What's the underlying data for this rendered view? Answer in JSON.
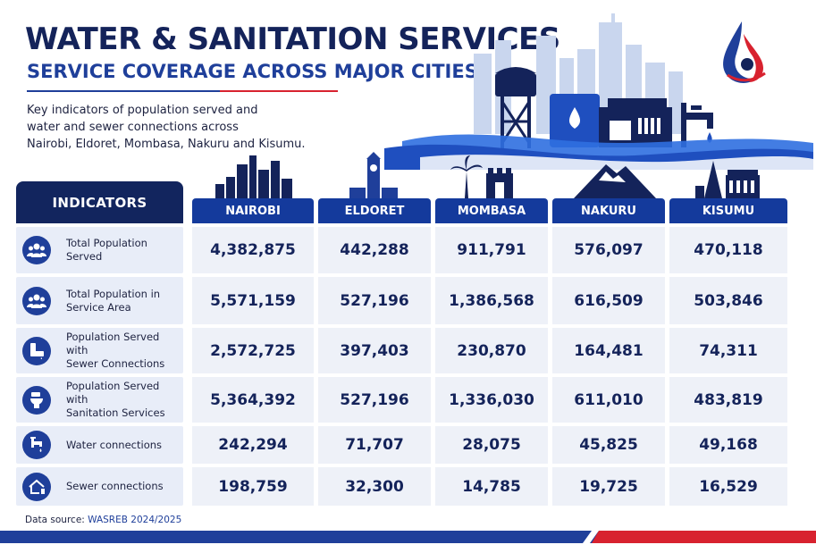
{
  "header": {
    "title": "WATER & SANITATION SERVICES",
    "subtitle": "SERVICE COVERAGE ACROSS MAJOR CITIES",
    "intro_lines": [
      "Key indicators of population served and",
      "water and sewer connections across",
      "Nairobi, Eldoret, Mombasa, Nakuru and Kisumu."
    ]
  },
  "table": {
    "indicators_label": "INDICATORS",
    "cities": [
      {
        "name": "NAIROBI",
        "icon": "nairobi-skyline-icon"
      },
      {
        "name": "ELDORET",
        "icon": "eldoret-clock-tower-icon"
      },
      {
        "name": "MOMBASA",
        "icon": "mombasa-palm-fort-icon"
      },
      {
        "name": "NAKURU",
        "icon": "nakuru-mountain-icon"
      },
      {
        "name": "KISUMU",
        "icon": "kisumu-buildings-icon"
      }
    ],
    "rows": [
      {
        "label_lines": [
          "Total Population",
          "Served"
        ],
        "icon": "people-group-icon",
        "values": [
          "4,382,875",
          "442,288",
          "911,791",
          "576,097",
          "470,118"
        ]
      },
      {
        "label_lines": [
          "Total Population in",
          "Service Area"
        ],
        "icon": "people-group-icon",
        "values": [
          "5,571,159",
          "527,196",
          "1,386,568",
          "616,509",
          "503,846"
        ]
      },
      {
        "label_lines": [
          "Population Served with",
          "Sewer Connections"
        ],
        "icon": "sewer-pipe-icon",
        "values": [
          "2,572,725",
          "397,403",
          "230,870",
          "164,481",
          "74,311"
        ]
      },
      {
        "label_lines": [
          "Population Served with",
          "Sanitation Services"
        ],
        "icon": "toilet-icon",
        "values": [
          "5,364,392",
          "527,196",
          "1,336,030",
          "611,010",
          "483,819"
        ]
      },
      {
        "label_lines": [
          "Water connections"
        ],
        "icon": "water-tap-icon",
        "values": [
          "242,294",
          "71,707",
          "28,075",
          "45,825",
          "49,168"
        ]
      },
      {
        "label_lines": [
          "Sewer connections"
        ],
        "icon": "house-connection-icon",
        "values": [
          "198,759",
          "32,300",
          "14,785",
          "19,725",
          "16,529"
        ]
      }
    ]
  },
  "footer": {
    "source_prefix": "Data source: ",
    "source_name": "WASREB 2024/2025"
  },
  "colors": {
    "navy": "#12255e",
    "blue": "#1f3f9a",
    "header_blue": "#143a9c",
    "red": "#d8222f",
    "cell_bg": "#eef1f8",
    "label_bg": "#e8edf8"
  }
}
